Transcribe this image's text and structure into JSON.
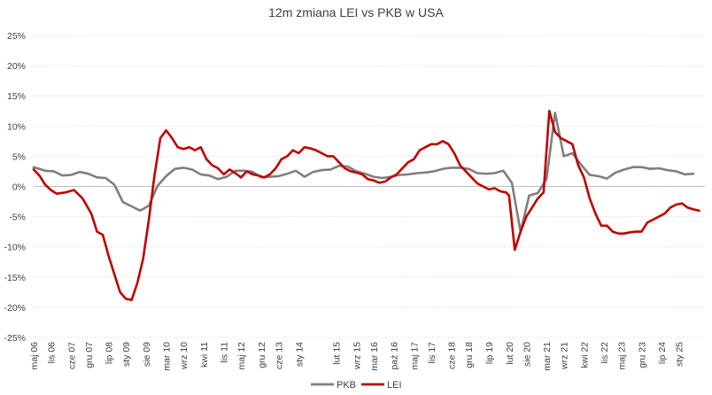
{
  "chart_data": {
    "type": "line",
    "title": "12m zmiana LEI vs PKB w USA",
    "xlabel": "",
    "ylabel": "",
    "ylim": [
      -25,
      25
    ],
    "yticks": [
      25,
      20,
      15,
      10,
      5,
      0,
      -5,
      -10,
      -15,
      -20,
      -25
    ],
    "ytick_labels": [
      "25%",
      "20%",
      "15%",
      "10%",
      "5%",
      "0%",
      "-5%",
      "-10%",
      "-15%",
      "-20%",
      "-25%"
    ],
    "grid": "horizontal-dotted",
    "legend": "bottom-center",
    "x_start": "2006-05",
    "x_end": "2025-10",
    "x_ticks": [
      {
        "label": "maj 06",
        "date": "2006-05"
      },
      {
        "label": "lis 06",
        "date": "2006-11"
      },
      {
        "label": "cze 07",
        "date": "2007-06"
      },
      {
        "label": "gru 07",
        "date": "2007-12"
      },
      {
        "label": "lip 08",
        "date": "2008-07"
      },
      {
        "label": "sty 09",
        "date": "2009-01"
      },
      {
        "label": "sie 09",
        "date": "2009-08"
      },
      {
        "label": "mar 10",
        "date": "2010-03"
      },
      {
        "label": "wrz 10",
        "date": "2010-09"
      },
      {
        "label": "kwi 11",
        "date": "2011-04"
      },
      {
        "label": "lis 11",
        "date": "2011-11"
      },
      {
        "label": "maj 12",
        "date": "2012-05"
      },
      {
        "label": "gru 12",
        "date": "2012-12"
      },
      {
        "label": "cze 13",
        "date": "2013-06"
      },
      {
        "label": "sty 14",
        "date": "2014-01"
      },
      {
        "label": "lut 15",
        "date": "2015-02"
      },
      {
        "label": "wrz 15",
        "date": "2015-09"
      },
      {
        "label": "mar 16",
        "date": "2016-03"
      },
      {
        "label": "paź 16",
        "date": "2016-10"
      },
      {
        "label": "maj 17",
        "date": "2017-05"
      },
      {
        "label": "lis 17",
        "date": "2017-11"
      },
      {
        "label": "cze 18",
        "date": "2018-06"
      },
      {
        "label": "gru 18",
        "date": "2018-12"
      },
      {
        "label": "lip 19",
        "date": "2019-07"
      },
      {
        "label": "lut 20",
        "date": "2020-02"
      },
      {
        "label": "sie 20",
        "date": "2020-08"
      },
      {
        "label": "mar 21",
        "date": "2021-03"
      },
      {
        "label": "wrz 21",
        "date": "2021-09"
      },
      {
        "label": "kwi 22",
        "date": "2022-04"
      },
      {
        "label": "lis 22",
        "date": "2022-11"
      },
      {
        "label": "maj 23",
        "date": "2023-05"
      },
      {
        "label": "gru 23",
        "date": "2023-12"
      },
      {
        "label": "lip 24",
        "date": "2024-07"
      },
      {
        "label": "sty 25",
        "date": "2025-01"
      }
    ],
    "series": [
      {
        "name": "PKB",
        "color": "#7f7f7f",
        "points": [
          [
            "2006-05",
            3.2
          ],
          [
            "2006-09",
            2.6
          ],
          [
            "2006-12",
            2.5
          ],
          [
            "2007-03",
            1.8
          ],
          [
            "2007-06",
            1.9
          ],
          [
            "2007-09",
            2.4
          ],
          [
            "2007-12",
            2.1
          ],
          [
            "2008-03",
            1.5
          ],
          [
            "2008-06",
            1.4
          ],
          [
            "2008-09",
            0.3
          ],
          [
            "2008-12",
            -2.6
          ],
          [
            "2009-03",
            -3.3
          ],
          [
            "2009-06",
            -4.0
          ],
          [
            "2009-09",
            -3.2
          ],
          [
            "2009-12",
            0.1
          ],
          [
            "2010-03",
            1.7
          ],
          [
            "2010-06",
            2.9
          ],
          [
            "2010-09",
            3.1
          ],
          [
            "2010-12",
            2.8
          ],
          [
            "2011-03",
            2.0
          ],
          [
            "2011-06",
            1.8
          ],
          [
            "2011-09",
            1.2
          ],
          [
            "2011-12",
            1.6
          ],
          [
            "2012-03",
            2.6
          ],
          [
            "2012-06",
            2.6
          ],
          [
            "2012-09",
            2.4
          ],
          [
            "2012-12",
            1.5
          ],
          [
            "2013-03",
            1.6
          ],
          [
            "2013-06",
            1.7
          ],
          [
            "2013-09",
            2.1
          ],
          [
            "2013-12",
            2.6
          ],
          [
            "2014-03",
            1.6
          ],
          [
            "2014-06",
            2.4
          ],
          [
            "2014-09",
            2.7
          ],
          [
            "2014-12",
            2.8
          ],
          [
            "2015-03",
            3.4
          ],
          [
            "2015-06",
            3.3
          ],
          [
            "2015-09",
            2.5
          ],
          [
            "2015-12",
            2.1
          ],
          [
            "2016-03",
            1.6
          ],
          [
            "2016-06",
            1.4
          ],
          [
            "2016-09",
            1.6
          ],
          [
            "2016-12",
            1.9
          ],
          [
            "2017-03",
            2.0
          ],
          [
            "2017-06",
            2.2
          ],
          [
            "2017-09",
            2.3
          ],
          [
            "2017-12",
            2.5
          ],
          [
            "2018-03",
            2.9
          ],
          [
            "2018-06",
            3.1
          ],
          [
            "2018-09",
            3.1
          ],
          [
            "2018-12",
            2.9
          ],
          [
            "2019-03",
            2.2
          ],
          [
            "2019-06",
            2.1
          ],
          [
            "2019-09",
            2.2
          ],
          [
            "2019-12",
            2.6
          ],
          [
            "2020-03",
            0.6
          ],
          [
            "2020-06",
            -7.5
          ],
          [
            "2020-09",
            -1.5
          ],
          [
            "2020-12",
            -1.1
          ],
          [
            "2021-03",
            1.2
          ],
          [
            "2021-06",
            12.2
          ],
          [
            "2021-09",
            5.0
          ],
          [
            "2021-12",
            5.5
          ],
          [
            "2022-03",
            3.6
          ],
          [
            "2022-06",
            1.9
          ],
          [
            "2022-09",
            1.7
          ],
          [
            "2022-12",
            1.3
          ],
          [
            "2023-03",
            2.3
          ],
          [
            "2023-06",
            2.8
          ],
          [
            "2023-09",
            3.2
          ],
          [
            "2023-12",
            3.2
          ],
          [
            "2024-03",
            2.9
          ],
          [
            "2024-06",
            3.0
          ],
          [
            "2024-09",
            2.7
          ],
          [
            "2024-12",
            2.5
          ],
          [
            "2025-03",
            2.0
          ],
          [
            "2025-06",
            2.1
          ]
        ]
      },
      {
        "name": "LEI",
        "color": "#c00000",
        "points": [
          [
            "2006-05",
            2.8
          ],
          [
            "2006-07",
            1.8
          ],
          [
            "2006-09",
            0.3
          ],
          [
            "2006-11",
            -0.6
          ],
          [
            "2007-01",
            -1.2
          ],
          [
            "2007-04",
            -1.0
          ],
          [
            "2007-07",
            -0.6
          ],
          [
            "2007-10",
            -2.0
          ],
          [
            "2008-01",
            -4.5
          ],
          [
            "2008-03",
            -7.5
          ],
          [
            "2008-05",
            -8.0
          ],
          [
            "2008-07",
            -11.5
          ],
          [
            "2008-09",
            -14.5
          ],
          [
            "2008-11",
            -17.5
          ],
          [
            "2009-01",
            -18.6
          ],
          [
            "2009-03",
            -18.8
          ],
          [
            "2009-05",
            -16.0
          ],
          [
            "2009-07",
            -12.0
          ],
          [
            "2009-09",
            -5.5
          ],
          [
            "2009-11",
            2.0
          ],
          [
            "2010-01",
            8.0
          ],
          [
            "2010-03",
            9.3
          ],
          [
            "2010-05",
            8.0
          ],
          [
            "2010-07",
            6.5
          ],
          [
            "2010-09",
            6.2
          ],
          [
            "2010-11",
            6.5
          ],
          [
            "2011-01",
            6.0
          ],
          [
            "2011-03",
            6.5
          ],
          [
            "2011-05",
            4.5
          ],
          [
            "2011-07",
            3.5
          ],
          [
            "2011-09",
            3.0
          ],
          [
            "2011-11",
            2.0
          ],
          [
            "2012-01",
            2.8
          ],
          [
            "2012-03",
            2.2
          ],
          [
            "2012-05",
            1.5
          ],
          [
            "2012-07",
            2.5
          ],
          [
            "2012-09",
            2.0
          ],
          [
            "2012-11",
            1.8
          ],
          [
            "2013-01",
            1.5
          ],
          [
            "2013-03",
            2.0
          ],
          [
            "2013-05",
            3.0
          ],
          [
            "2013-07",
            4.5
          ],
          [
            "2013-09",
            5.0
          ],
          [
            "2013-11",
            6.0
          ],
          [
            "2014-01",
            5.5
          ],
          [
            "2014-03",
            6.5
          ],
          [
            "2014-05",
            6.3
          ],
          [
            "2014-07",
            6.0
          ],
          [
            "2014-09",
            5.5
          ],
          [
            "2014-11",
            5.0
          ],
          [
            "2015-01",
            5.0
          ],
          [
            "2015-03",
            4.0
          ],
          [
            "2015-05",
            3.0
          ],
          [
            "2015-07",
            2.5
          ],
          [
            "2015-09",
            2.3
          ],
          [
            "2015-11",
            2.0
          ],
          [
            "2016-01",
            1.2
          ],
          [
            "2016-03",
            1.0
          ],
          [
            "2016-05",
            0.6
          ],
          [
            "2016-07",
            0.8
          ],
          [
            "2016-09",
            1.5
          ],
          [
            "2016-11",
            2.0
          ],
          [
            "2017-01",
            3.0
          ],
          [
            "2017-03",
            4.0
          ],
          [
            "2017-05",
            4.5
          ],
          [
            "2017-07",
            6.0
          ],
          [
            "2017-09",
            6.5
          ],
          [
            "2017-11",
            7.0
          ],
          [
            "2018-01",
            7.0
          ],
          [
            "2018-03",
            7.5
          ],
          [
            "2018-05",
            7.0
          ],
          [
            "2018-07",
            5.5
          ],
          [
            "2018-09",
            3.5
          ],
          [
            "2018-11",
            2.5
          ],
          [
            "2019-01",
            1.5
          ],
          [
            "2019-03",
            0.5
          ],
          [
            "2019-05",
            0.0
          ],
          [
            "2019-07",
            -0.5
          ],
          [
            "2019-09",
            -0.3
          ],
          [
            "2019-11",
            -0.8
          ],
          [
            "2020-01",
            -1.0
          ],
          [
            "2020-02",
            -1.5
          ],
          [
            "2020-04",
            -10.5
          ],
          [
            "2020-06",
            -7.5
          ],
          [
            "2020-08",
            -5.0
          ],
          [
            "2020-10",
            -3.5
          ],
          [
            "2020-12",
            -2.0
          ],
          [
            "2021-02",
            -1.0
          ],
          [
            "2021-04",
            12.5
          ],
          [
            "2021-06",
            9.0
          ],
          [
            "2021-08",
            8.0
          ],
          [
            "2021-10",
            7.5
          ],
          [
            "2021-12",
            7.0
          ],
          [
            "2022-02",
            3.5
          ],
          [
            "2022-04",
            1.5
          ],
          [
            "2022-06",
            -2.0
          ],
          [
            "2022-08",
            -4.5
          ],
          [
            "2022-10",
            -6.5
          ],
          [
            "2022-12",
            -6.5
          ],
          [
            "2023-02",
            -7.5
          ],
          [
            "2023-04",
            -7.8
          ],
          [
            "2023-06",
            -7.8
          ],
          [
            "2023-08",
            -7.6
          ],
          [
            "2023-10",
            -7.5
          ],
          [
            "2023-12",
            -7.5
          ],
          [
            "2024-02",
            -6.0
          ],
          [
            "2024-04",
            -5.5
          ],
          [
            "2024-06",
            -5.0
          ],
          [
            "2024-08",
            -4.5
          ],
          [
            "2024-10",
            -3.5
          ],
          [
            "2024-12",
            -3.0
          ],
          [
            "2025-02",
            -2.8
          ],
          [
            "2025-04",
            -3.5
          ],
          [
            "2025-06",
            -3.8
          ],
          [
            "2025-08",
            -4.0
          ]
        ]
      }
    ]
  }
}
